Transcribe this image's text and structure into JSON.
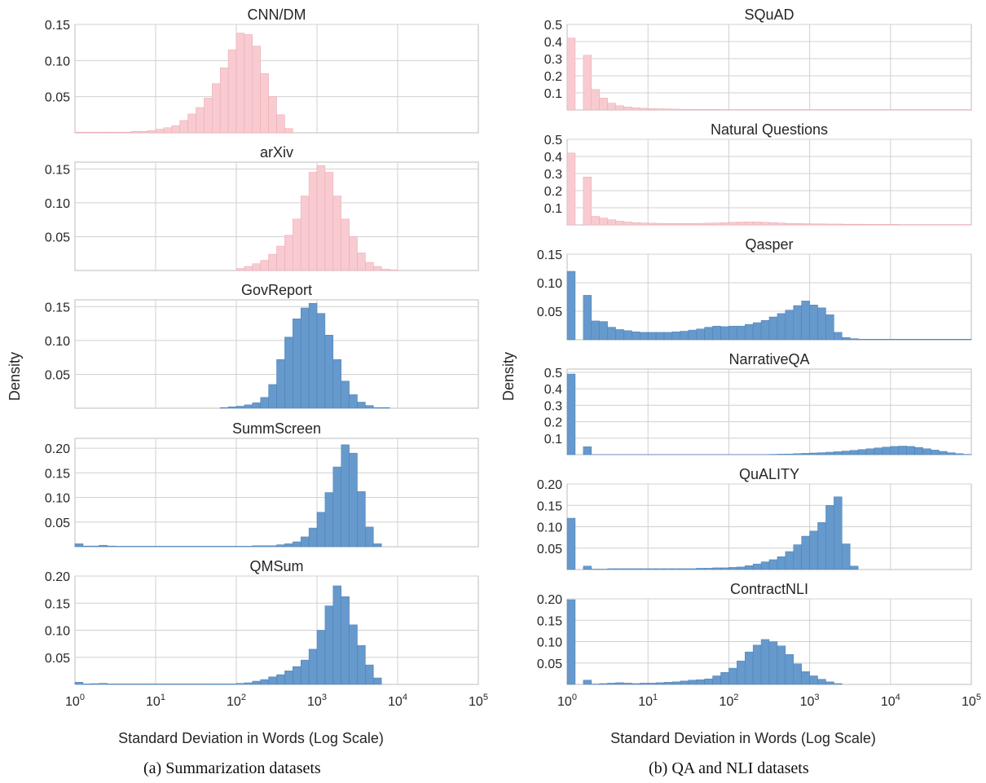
{
  "figure": {
    "left_caption": "(a) Summarization datasets",
    "right_caption": "(b) QA and NLI datasets"
  },
  "colors": {
    "pink": "#f8cbd1",
    "pink_edge": "#eaa6b0",
    "blue": "#6699cc",
    "blue_edge": "#4a7fb8",
    "grid": "#d0d0d0",
    "spine": "#bdbdbd"
  },
  "chart_data": [
    {
      "panel": "left",
      "type": "histogram",
      "xscale": "log",
      "xlim": [
        1,
        100000
      ],
      "xlabel": "Standard Deviation in Words (Log Scale)",
      "ylabel": "Density",
      "xticks": [
        1,
        10,
        100,
        1000,
        10000,
        100000
      ],
      "xtick_labels": [
        {
          "base": "10",
          "exp": "0"
        },
        {
          "base": "10",
          "exp": "1"
        },
        {
          "base": "10",
          "exp": "2"
        },
        {
          "base": "10",
          "exp": "3"
        },
        {
          "base": "10",
          "exp": "4"
        },
        {
          "base": "10",
          "exp": "5"
        }
      ],
      "subplots": [
        {
          "title": "CNN/DM",
          "color": "pink",
          "ylim": [
            0,
            0.15
          ],
          "yticks": [
            0.05,
            0.1,
            0.15
          ],
          "ytick_labels": [
            "0.05",
            "0.10",
            "0.15"
          ],
          "log_start": 0,
          "log_width": 0.1,
          "values": [
            0.001,
            0.001,
            0.001,
            0.001,
            0.001,
            0.001,
            0.001,
            0.002,
            0.002,
            0.003,
            0.005,
            0.007,
            0.01,
            0.017,
            0.026,
            0.035,
            0.048,
            0.068,
            0.09,
            0.115,
            0.138,
            0.136,
            0.12,
            0.082,
            0.05,
            0.025,
            0.006
          ]
        },
        {
          "title": "arXiv",
          "color": "pink",
          "ylim": [
            0,
            0.16
          ],
          "yticks": [
            0.05,
            0.1,
            0.15
          ],
          "ytick_labels": [
            "0.05",
            "0.10",
            "0.15"
          ],
          "log_start": 2,
          "log_width": 0.1,
          "values": [
            0.003,
            0.006,
            0.01,
            0.015,
            0.024,
            0.036,
            0.052,
            0.076,
            0.11,
            0.145,
            0.155,
            0.145,
            0.11,
            0.076,
            0.05,
            0.026,
            0.012,
            0.006,
            0.002,
            0.001
          ]
        },
        {
          "title": "GovReport",
          "color": "blue",
          "ylim": [
            0,
            0.16
          ],
          "yticks": [
            0.05,
            0.1,
            0.15
          ],
          "ytick_labels": [
            "0.05",
            "0.10",
            "0.15"
          ],
          "log_start": 1.8,
          "log_width": 0.1,
          "values": [
            0.001,
            0.002,
            0.003,
            0.005,
            0.008,
            0.016,
            0.035,
            0.072,
            0.105,
            0.132,
            0.148,
            0.155,
            0.14,
            0.108,
            0.072,
            0.04,
            0.02,
            0.009,
            0.004,
            0.001,
            0.001
          ]
        },
        {
          "title": "SummScreen",
          "color": "blue",
          "ylim": [
            0,
            0.22
          ],
          "yticks": [
            0.05,
            0.1,
            0.15,
            0.2
          ],
          "ytick_labels": [
            "0.05",
            "0.10",
            "0.15",
            "0.20"
          ],
          "log_start": 0,
          "log_width": 0.1,
          "values": [
            0.006,
            0.0015,
            0.0015,
            0.003,
            0.0015,
            0.001,
            0.001,
            0.001,
            0.001,
            0.001,
            0.001,
            0.001,
            0.001,
            0.001,
            0.001,
            0.001,
            0.001,
            0.001,
            0.001,
            0.001,
            0.001,
            0.001,
            0.002,
            0.002,
            0.002,
            0.004,
            0.006,
            0.01,
            0.02,
            0.038,
            0.07,
            0.11,
            0.162,
            0.207,
            0.19,
            0.112,
            0.04,
            0.006
          ]
        },
        {
          "title": "QMSum",
          "color": "blue",
          "ylim": [
            0,
            0.2
          ],
          "yticks": [
            0.05,
            0.1,
            0.15,
            0.2
          ],
          "ytick_labels": [
            "0.05",
            "0.10",
            "0.15",
            "0.20"
          ],
          "log_start": 0,
          "log_width": 0.1,
          "values": [
            0.004,
            0.001,
            0.0015,
            0.002,
            0.001,
            0.001,
            0.001,
            0.001,
            0.001,
            0.001,
            0.001,
            0.001,
            0.001,
            0.001,
            0.001,
            0.001,
            0.001,
            0.001,
            0.001,
            0.001,
            0.002,
            0.003,
            0.006,
            0.009,
            0.014,
            0.018,
            0.025,
            0.033,
            0.045,
            0.065,
            0.1,
            0.145,
            0.182,
            0.162,
            0.11,
            0.072,
            0.036,
            0.012
          ]
        }
      ]
    },
    {
      "panel": "right",
      "type": "histogram",
      "xscale": "log",
      "xlim": [
        1,
        100000
      ],
      "xlabel": "Standard Deviation in Words (Log Scale)",
      "ylabel": "Density",
      "xticks": [
        1,
        10,
        100,
        1000,
        10000,
        100000
      ],
      "xtick_labels": [
        {
          "base": "10",
          "exp": "0"
        },
        {
          "base": "10",
          "exp": "1"
        },
        {
          "base": "10",
          "exp": "2"
        },
        {
          "base": "10",
          "exp": "3"
        },
        {
          "base": "10",
          "exp": "4"
        },
        {
          "base": "10",
          "exp": "5"
        }
      ],
      "subplots": [
        {
          "title": "SQuAD",
          "color": "pink",
          "ylim": [
            0,
            0.5
          ],
          "yticks": [
            0.1,
            0.2,
            0.3,
            0.4,
            0.5
          ],
          "ytick_labels": [
            "0.1",
            "0.2",
            "0.3",
            "0.4",
            "0.5"
          ],
          "log_start": 0,
          "log_width": 0.1,
          "values": [
            0.42,
            0.0,
            0.32,
            0.12,
            0.07,
            0.04,
            0.025,
            0.018,
            0.013,
            0.01,
            0.008,
            0.007,
            0.006,
            0.005,
            0.004,
            0.004,
            0.003,
            0.003,
            0.003,
            0.002,
            0.002,
            0.002,
            0.002,
            0.002,
            0.002,
            0.002,
            0.002,
            0.002,
            0.002,
            0.002,
            0.002,
            0.002,
            0.002,
            0.002,
            0.002,
            0.002,
            0.002,
            0.002,
            0.002,
            0.002,
            0.002,
            0.002,
            0.002,
            0.002,
            0.002,
            0.002,
            0.002,
            0.002,
            0.002,
            0.002
          ]
        },
        {
          "title": "Natural Questions",
          "color": "pink",
          "ylim": [
            0,
            0.5
          ],
          "yticks": [
            0.1,
            0.2,
            0.3,
            0.4,
            0.5
          ],
          "ytick_labels": [
            "0.1",
            "0.2",
            "0.3",
            "0.4",
            "0.5"
          ],
          "log_start": 0,
          "log_width": 0.1,
          "values": [
            0.42,
            0.0,
            0.28,
            0.05,
            0.04,
            0.03,
            0.022,
            0.017,
            0.013,
            0.011,
            0.01,
            0.009,
            0.008,
            0.008,
            0.008,
            0.008,
            0.009,
            0.01,
            0.011,
            0.013,
            0.015,
            0.017,
            0.018,
            0.017,
            0.015,
            0.013,
            0.011,
            0.009,
            0.008,
            0.007,
            0.006,
            0.006,
            0.005,
            0.005,
            0.004,
            0.004,
            0.004,
            0.003,
            0.003,
            0.003,
            0.003,
            0.002,
            0.002,
            0.002,
            0.002,
            0.002,
            0.002,
            0.002,
            0.002,
            0.002
          ]
        },
        {
          "title": "Qasper",
          "color": "blue",
          "ylim": [
            0,
            0.15
          ],
          "yticks": [
            0.05,
            0.1,
            0.15
          ],
          "ytick_labels": [
            "0.05",
            "0.10",
            "0.15"
          ],
          "log_start": 0,
          "log_width": 0.1,
          "values": [
            0.12,
            0.0,
            0.078,
            0.033,
            0.032,
            0.022,
            0.018,
            0.016,
            0.014,
            0.013,
            0.013,
            0.013,
            0.013,
            0.014,
            0.015,
            0.017,
            0.019,
            0.022,
            0.024,
            0.023,
            0.024,
            0.024,
            0.027,
            0.03,
            0.034,
            0.04,
            0.046,
            0.052,
            0.06,
            0.068,
            0.061,
            0.056,
            0.044,
            0.013,
            0.004,
            0.002,
            0.001,
            0.001,
            0.001,
            0.001,
            0.001,
            0.001,
            0.001,
            0.001,
            0.001,
            0.001,
            0.001,
            0.001,
            0.001,
            0.001
          ]
        },
        {
          "title": "NarrativeQA",
          "color": "blue",
          "ylim": [
            0,
            0.52
          ],
          "yticks": [
            0.1,
            0.2,
            0.3,
            0.4,
            0.5
          ],
          "ytick_labels": [
            "0.1",
            "0.2",
            "0.3",
            "0.4",
            "0.5"
          ],
          "log_start": 0,
          "log_width": 0.1,
          "values": [
            0.49,
            0.0,
            0.048,
            0.001,
            0.001,
            0.001,
            0.001,
            0.001,
            0.001,
            0.001,
            0.001,
            0.001,
            0.001,
            0.001,
            0.001,
            0.001,
            0.001,
            0.001,
            0.001,
            0.001,
            0.001,
            0.001,
            0.001,
            0.001,
            0.001,
            0.002,
            0.003,
            0.004,
            0.006,
            0.008,
            0.01,
            0.012,
            0.015,
            0.018,
            0.022,
            0.026,
            0.031,
            0.036,
            0.041,
            0.046,
            0.05,
            0.052,
            0.05,
            0.044,
            0.036,
            0.028,
            0.02,
            0.012,
            0.006,
            0.002
          ]
        },
        {
          "title": "QuALITY",
          "color": "blue",
          "ylim": [
            0,
            0.2
          ],
          "yticks": [
            0.05,
            0.1,
            0.15,
            0.2
          ],
          "ytick_labels": [
            "0.05",
            "0.10",
            "0.15",
            "0.20"
          ],
          "log_start": 0,
          "log_width": 0.1,
          "values": [
            0.12,
            0.0,
            0.008,
            0.001,
            0.001,
            0.002,
            0.002,
            0.002,
            0.002,
            0.002,
            0.002,
            0.002,
            0.002,
            0.002,
            0.002,
            0.002,
            0.003,
            0.003,
            0.004,
            0.004,
            0.005,
            0.006,
            0.009,
            0.013,
            0.018,
            0.023,
            0.03,
            0.042,
            0.058,
            0.078,
            0.09,
            0.11,
            0.15,
            0.17,
            0.06,
            0.008
          ]
        },
        {
          "title": "ContractNLI",
          "color": "blue",
          "ylim": [
            0,
            0.2
          ],
          "yticks": [
            0.05,
            0.1,
            0.15,
            0.2
          ],
          "ytick_labels": [
            "0.05",
            "0.10",
            "0.15",
            "0.20"
          ],
          "log_start": 0,
          "log_width": 0.1,
          "values": [
            0.198,
            0.0,
            0.01,
            0.001,
            0.002,
            0.003,
            0.004,
            0.003,
            0.002,
            0.003,
            0.003,
            0.004,
            0.005,
            0.006,
            0.008,
            0.01,
            0.011,
            0.013,
            0.02,
            0.028,
            0.038,
            0.055,
            0.076,
            0.092,
            0.105,
            0.1,
            0.09,
            0.07,
            0.048,
            0.03,
            0.02,
            0.012,
            0.006,
            0.002
          ]
        }
      ]
    }
  ]
}
